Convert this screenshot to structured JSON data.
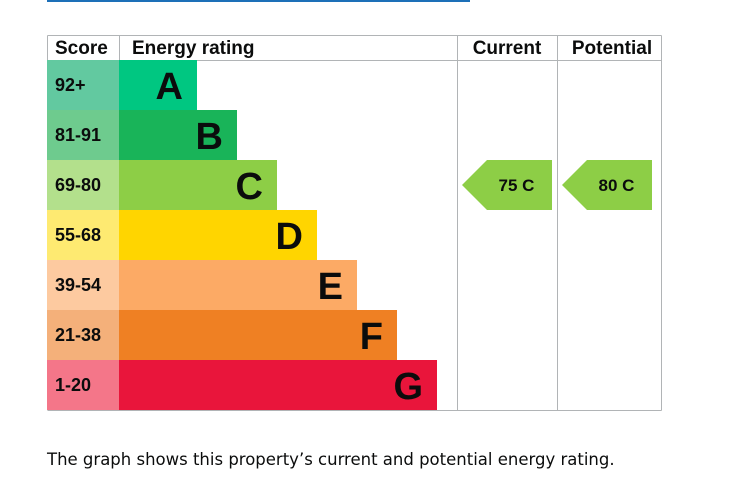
{
  "chart_data": {
    "type": "bar",
    "headers": {
      "score": "Score",
      "rating": "Energy rating",
      "current": "Current",
      "potential": "Potential"
    },
    "bands": [
      {
        "letter": "A",
        "range": "92+",
        "min": 92,
        "max": 100,
        "color": "#00c781",
        "score_color": "#62c9a0"
      },
      {
        "letter": "B",
        "range": "81-91",
        "min": 81,
        "max": 91,
        "color": "#19b459",
        "score_color": "#6ecb8e"
      },
      {
        "letter": "C",
        "range": "69-80",
        "min": 69,
        "max": 80,
        "color": "#8dce46",
        "score_color": "#b3e08c"
      },
      {
        "letter": "D",
        "range": "55-68",
        "min": 55,
        "max": 68,
        "color": "#ffd500",
        "score_color": "#feea71"
      },
      {
        "letter": "E",
        "range": "39-54",
        "min": 39,
        "max": 54,
        "color": "#fcaa65",
        "score_color": "#fdcaa0"
      },
      {
        "letter": "F",
        "range": "21-38",
        "min": 21,
        "max": 38,
        "color": "#ef8023",
        "score_color": "#f4b07a"
      },
      {
        "letter": "G",
        "range": "1-20",
        "min": 1,
        "max": 20,
        "color": "#e9153b",
        "score_color": "#f47689"
      }
    ],
    "current": {
      "value": 75,
      "band": "C",
      "label": "75 C"
    },
    "potential": {
      "value": 80,
      "band": "C",
      "label": "80 C"
    }
  },
  "caption": "The graph shows this property’s current and potential energy rating."
}
